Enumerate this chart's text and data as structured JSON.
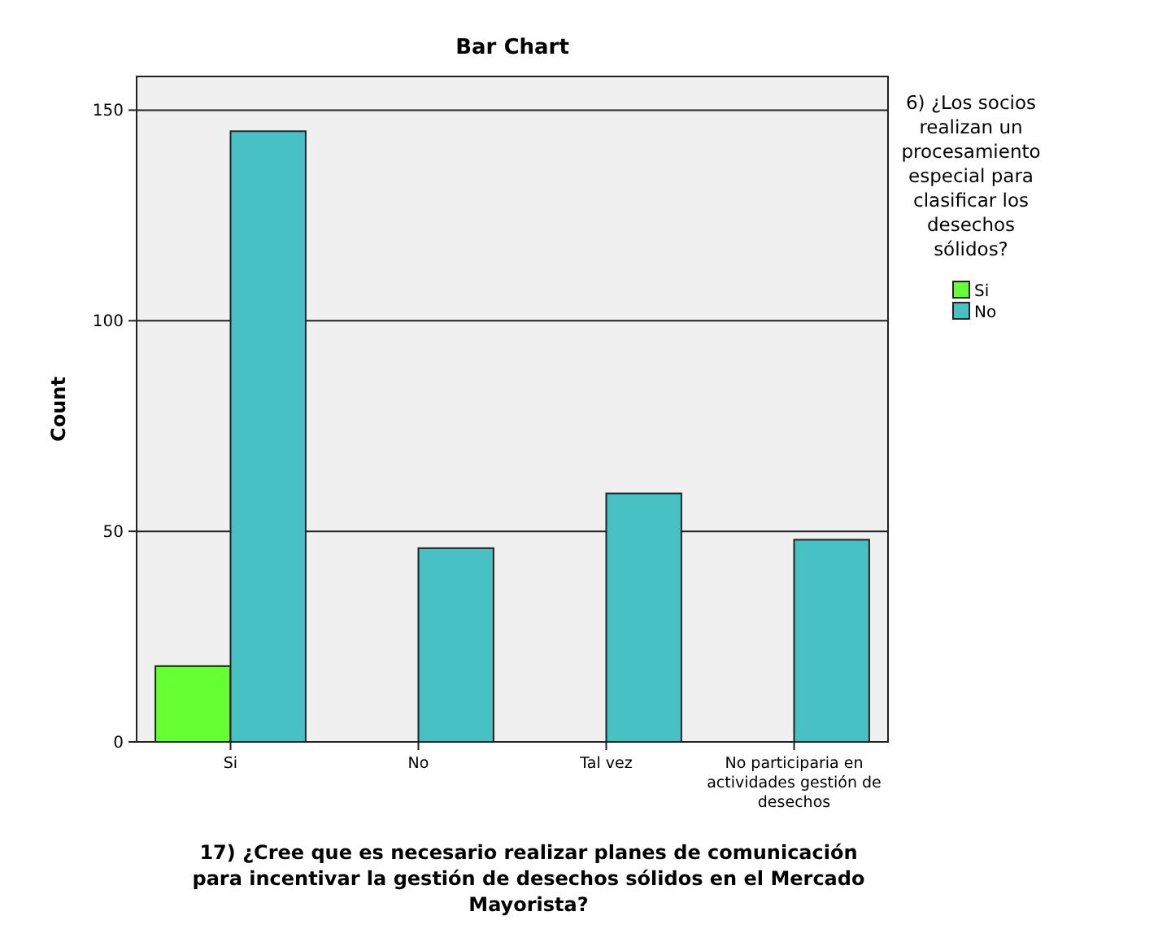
{
  "chart_data": {
    "type": "bar",
    "title": "Bar Chart",
    "xlabel": "17) ¿Cree que es necesario realizar planes de comunicación para incentivar la gestión de desechos sólidos en el Mercado Mayorista?",
    "ylabel": "Count",
    "legend_title": "6) ¿Los socios realizan un procesamiento especial para clasificar los desechos sólidos?",
    "categories": [
      "Si",
      "No",
      "Tal vez",
      "No participaria en actividades gestión de desechos"
    ],
    "series": [
      {
        "name": "Si",
        "color": "#66ff33",
        "values": [
          18,
          null,
          null,
          null
        ]
      },
      {
        "name": "No",
        "color": "#48c1c4",
        "values": [
          145,
          46,
          59,
          48
        ]
      }
    ],
    "ylim": [
      0,
      158
    ],
    "yticks": [
      0,
      50,
      100,
      150
    ],
    "grid": "y",
    "legend": "right"
  }
}
